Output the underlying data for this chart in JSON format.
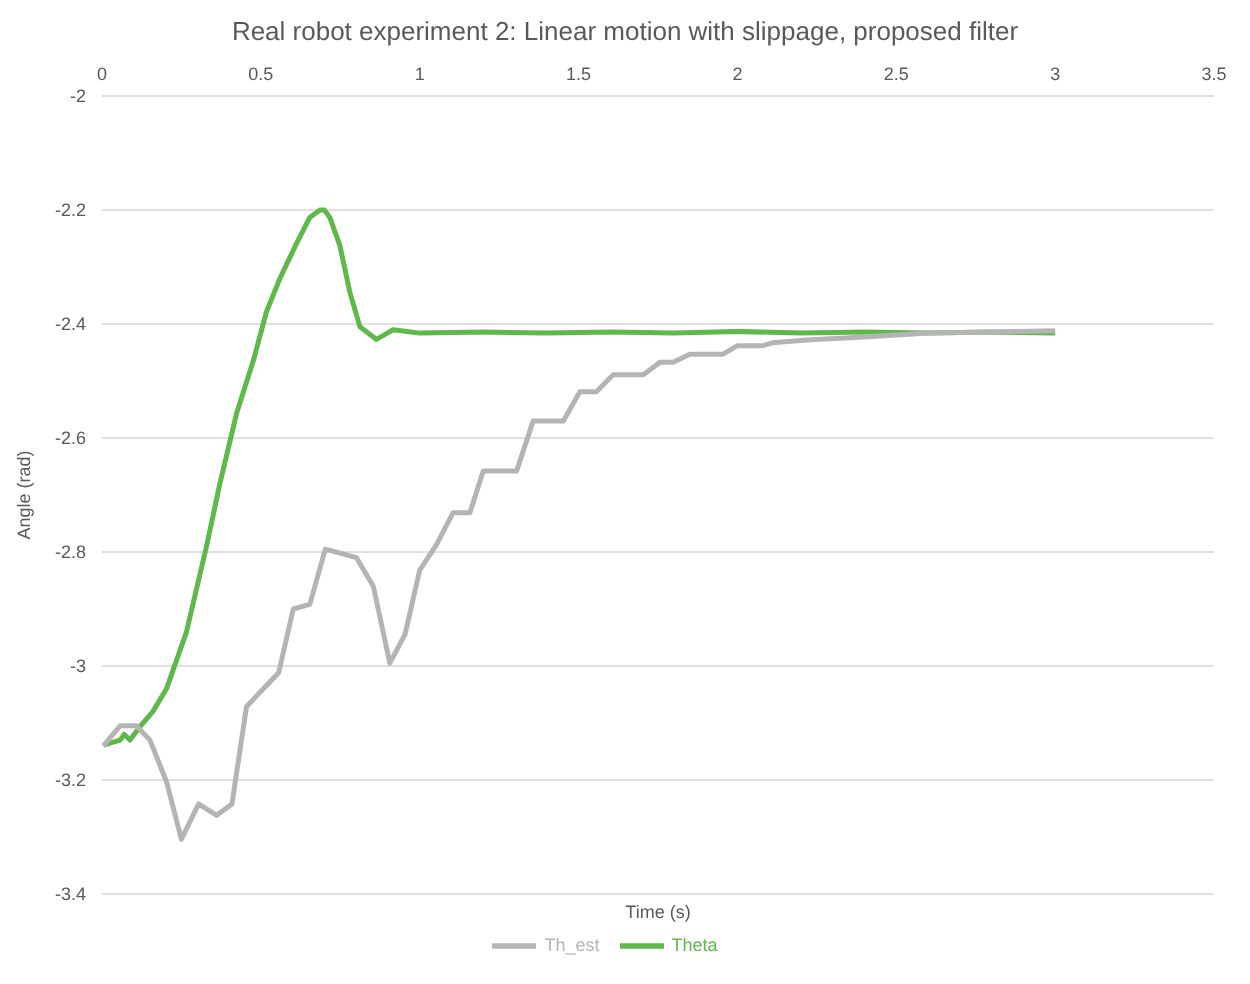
{
  "chart_data": {
    "type": "line",
    "title": "Real robot experiment 2: Linear motion with slippage, proposed filter",
    "xlabel": "Time (s)",
    "ylabel": "Angle (rad)",
    "xlim": [
      0,
      3.5
    ],
    "xticks": [
      0,
      0.5,
      1,
      1.5,
      2,
      2.5,
      3,
      3.5
    ],
    "ylim": [
      -3.4,
      -2
    ],
    "yticks": [
      -3.4,
      -3.2,
      -3,
      -2.8,
      -2.6,
      -2.4,
      -2.2,
      -2
    ],
    "grid": "y",
    "legend": "bottom",
    "marker": "none",
    "line_style": "solid",
    "series": [
      {
        "name": "Theta",
        "color": "#5fb84a",
        "x": [
          0.004,
          0.057,
          0.07,
          0.088,
          0.12,
          0.16,
          0.203,
          0.266,
          0.329,
          0.371,
          0.424,
          0.476,
          0.518,
          0.56,
          0.612,
          0.654,
          0.686,
          0.7,
          0.717,
          0.749,
          0.78,
          0.812,
          0.864,
          0.917,
          1.0,
          1.2,
          1.4,
          1.6,
          1.8,
          2.0,
          2.2,
          2.4,
          2.6,
          2.8,
          3.0
        ],
        "values": [
          -3.139,
          -3.13,
          -3.12,
          -3.13,
          -3.106,
          -3.08,
          -3.04,
          -2.94,
          -2.79,
          -2.68,
          -2.556,
          -2.465,
          -2.378,
          -2.32,
          -2.259,
          -2.213,
          -2.2,
          -2.2,
          -2.213,
          -2.263,
          -2.344,
          -2.405,
          -2.427,
          -2.41,
          -2.416,
          -2.414,
          -2.416,
          -2.414,
          -2.416,
          -2.413,
          -2.416,
          -2.414,
          -2.416,
          -2.414,
          -2.416
        ]
      },
      {
        "name": "Th_est",
        "color": "#b4b4b4",
        "x": [
          0.004,
          0.057,
          0.109,
          0.151,
          0.203,
          0.25,
          0.304,
          0.361,
          0.409,
          0.455,
          0.508,
          0.556,
          0.602,
          0.654,
          0.703,
          0.801,
          0.854,
          0.906,
          0.954,
          1.0,
          1.053,
          1.105,
          1.158,
          1.2,
          1.305,
          1.357,
          1.452,
          1.504,
          1.556,
          1.609,
          1.704,
          1.756,
          1.798,
          1.85,
          1.955,
          2.0,
          2.08,
          2.11,
          2.217,
          2.4,
          2.6,
          2.8,
          3.0
        ],
        "values": [
          -3.14,
          -3.105,
          -3.105,
          -3.13,
          -3.203,
          -3.304,
          -3.242,
          -3.262,
          -3.242,
          -3.071,
          -3.04,
          -3.012,
          -2.9,
          -2.892,
          -2.795,
          -2.81,
          -2.86,
          -2.995,
          -2.944,
          -2.832,
          -2.787,
          -2.731,
          -2.731,
          -2.658,
          -2.658,
          -2.57,
          -2.57,
          -2.519,
          -2.519,
          -2.489,
          -2.489,
          -2.467,
          -2.467,
          -2.453,
          -2.453,
          -2.438,
          -2.438,
          -2.433,
          -2.428,
          -2.423,
          -2.416,
          -2.414,
          -2.412
        ]
      }
    ]
  }
}
